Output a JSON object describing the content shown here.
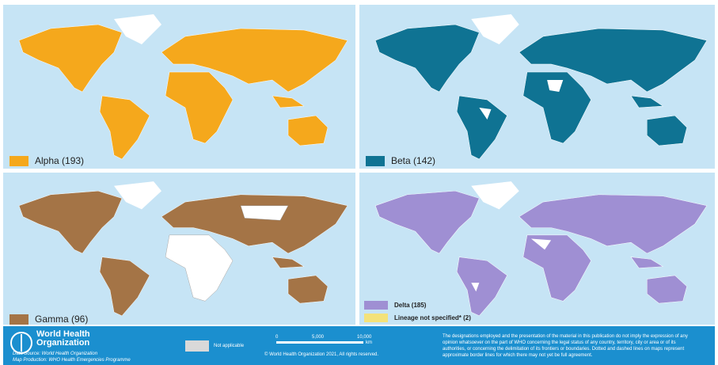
{
  "panels": [
    {
      "legend": "Alpha (193)"
    },
    {
      "legend": "Beta (142)"
    },
    {
      "legend": "Gamma (96)"
    },
    {
      "legend": "Delta (185)",
      "legend2": "Lineage not specified* (2)"
    }
  ],
  "footer": {
    "organization": [
      "World Health",
      "Organization"
    ],
    "data_source": "Data Source: World Health Organization",
    "map_production": "Map Production: WHO Health Emergencies Programme",
    "not_applicable": "Not applicable",
    "scale": [
      "0",
      "5,000",
      "10,000",
      "km"
    ],
    "copyright": "© World Health Organization 2021, All rights reserved.",
    "disclaimer": [
      "The designations employed and the presentation of the material in this publication do not imply the expression of any",
      "opinion whatsoever on the part of WHO concerning the legal status of any country, territory, city or area or of its",
      "authorities, or concerning the delimitation of its frontiers or boundaries. Dotted and dashed lines on maps represent",
      "approximate border lines for which there may not yet be full agreement."
    ]
  }
}
